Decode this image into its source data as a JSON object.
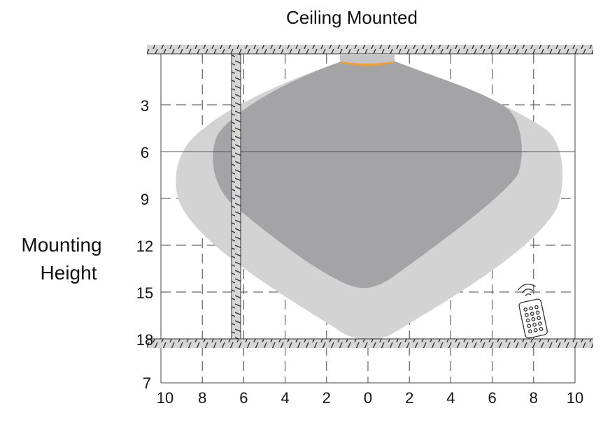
{
  "title": "Ceiling Mounted",
  "y_axis_label": [
    "Mounting",
    "Height"
  ],
  "y_ticks": [
    "3",
    "6",
    "9",
    "12",
    "15",
    "18"
  ],
  "y_bottom_label": "7",
  "x_ticks": [
    "10",
    "8",
    "6",
    "4",
    "2",
    "0",
    "2",
    "4",
    "6",
    "8",
    "10"
  ],
  "colors": {
    "outer_zone": "#d3d3d3",
    "inner_zone": "#a4a4a6",
    "sensor_lens": "#e8a040",
    "hatch_band": "#d6d6d6"
  },
  "icons": [
    "ceiling-sensor-icon",
    "remote-control-icon",
    "wall-icon"
  ]
}
